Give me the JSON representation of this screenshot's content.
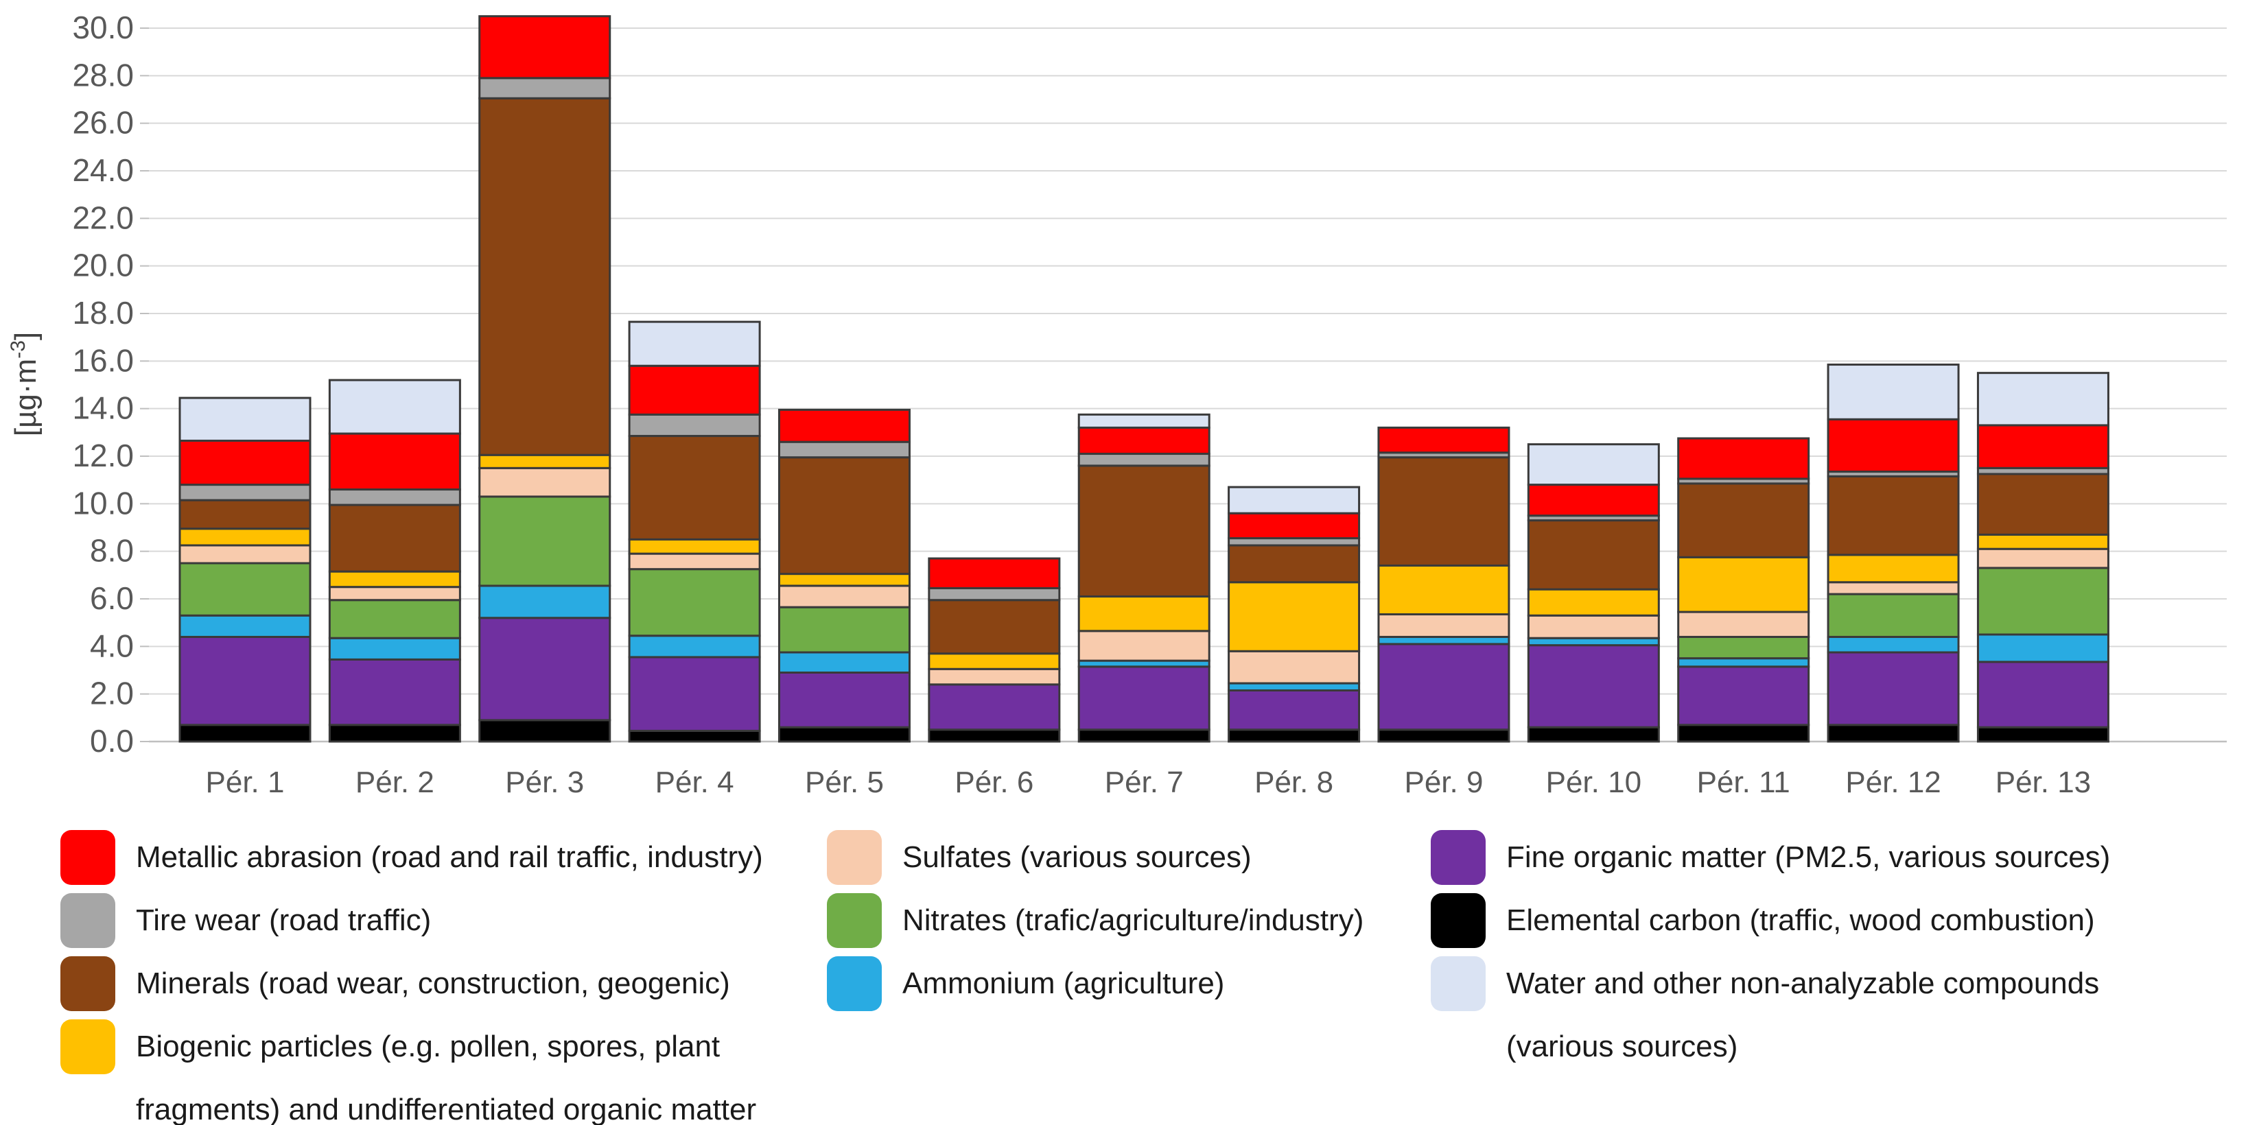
{
  "chart_data": {
    "type": "bar",
    "stacked": true,
    "title": "",
    "ylabel": "[µg·m⁻³]",
    "ylabel_parts": {
      "pre": "[µg·m",
      "sup": "-3",
      "post": "]"
    },
    "ylim": [
      0,
      30.6
    ],
    "y_tick_step": 2,
    "grid": true,
    "y_ticks": [
      "0.0",
      "2.0",
      "4.0",
      "6.0",
      "8.0",
      "10.0",
      "12.0",
      "14.0",
      "16.0",
      "18.0",
      "20.0",
      "22.0",
      "24.0",
      "26.0",
      "28.0",
      "30.0"
    ],
    "categories": [
      "Pér. 1",
      "Pér. 2",
      "Pér. 3",
      "Pér. 4",
      "Pér. 5",
      "Pér. 6",
      "Pér. 7",
      "Pér. 8",
      "Pér. 9",
      "Pér. 10",
      "Pér. 11",
      "Pér. 12",
      "Pér. 13"
    ],
    "legend_position": "bottom",
    "series": [
      {
        "key": "elemental-carbon",
        "name": "Elemental carbon (traffic, wood combustion)",
        "color": "#000000",
        "values": [
          0.7,
          0.7,
          0.9,
          0.45,
          0.6,
          0.5,
          0.5,
          0.5,
          0.5,
          0.6,
          0.7,
          0.7,
          0.6
        ]
      },
      {
        "key": "fine-organic-matter",
        "name": "Fine organic matter (PM2.5, various sources)",
        "color": "#7030A0",
        "values": [
          3.7,
          2.75,
          4.3,
          3.1,
          2.3,
          1.9,
          2.65,
          1.65,
          3.6,
          3.45,
          2.45,
          3.05,
          2.75
        ]
      },
      {
        "key": "ammonium",
        "name": "Ammonium (agriculture)",
        "color": "#29ABE2",
        "values": [
          0.9,
          0.9,
          1.35,
          0.9,
          0.85,
          0,
          0.25,
          0.3,
          0.3,
          0.3,
          0.35,
          0.65,
          1.15
        ]
      },
      {
        "key": "nitrates",
        "name": "Nitrates (trafic/agriculture/industry)",
        "color": "#70AD47",
        "values": [
          2.2,
          1.6,
          3.75,
          2.8,
          1.9,
          0,
          0,
          0,
          0,
          0,
          0.9,
          1.8,
          2.8
        ]
      },
      {
        "key": "sulfates",
        "name": "Sulfates (various sources)",
        "color": "#F8CBAD",
        "values": [
          0.75,
          0.55,
          1.2,
          0.65,
          0.9,
          0.65,
          1.25,
          1.35,
          0.95,
          0.95,
          1.05,
          0.5,
          0.8
        ]
      },
      {
        "key": "biogenic-particles",
        "name": "Biogenic particles (e.g. pollen, spores, plant fragments) and undifferentiated organic matter",
        "color": "#FFC000",
        "values": [
          0.7,
          0.65,
          0.55,
          0.6,
          0.5,
          0.65,
          1.45,
          2.9,
          2.05,
          1.1,
          2.3,
          1.15,
          0.6
        ]
      },
      {
        "key": "minerals",
        "name": "Minerals (road wear, construction, geogenic)",
        "color": "#8A4413",
        "values": [
          1.2,
          2.8,
          15.0,
          4.35,
          4.9,
          2.25,
          5.5,
          1.55,
          4.55,
          2.9,
          3.1,
          3.3,
          2.55
        ]
      },
      {
        "key": "tire-wear",
        "name": "Tire wear (road traffic)",
        "color": "#A6A6A6",
        "values": [
          0.65,
          0.65,
          0.85,
          0.9,
          0.65,
          0.5,
          0.5,
          0.3,
          0.2,
          0.2,
          0.2,
          0.2,
          0.25
        ]
      },
      {
        "key": "metallic-abrasion",
        "name": "Metallic abrasion (road and rail traffic, industry)",
        "color": "#FF0000",
        "values": [
          1.85,
          2.35,
          2.6,
          2.05,
          1.35,
          1.25,
          1.1,
          1.05,
          1.05,
          1.3,
          1.7,
          2.2,
          1.8
        ]
      },
      {
        "key": "water-other",
        "name": "Water and other non-analyzable compounds (various sources)",
        "color": "#DAE3F3",
        "values": [
          1.8,
          2.25,
          0,
          1.85,
          0,
          0,
          0.55,
          1.1,
          0,
          1.7,
          0,
          2.3,
          2.2
        ]
      }
    ],
    "totals": [
      14.45,
      15.2,
      30.5,
      17.65,
      13.95,
      7.7,
      13.75,
      10.7,
      13.2,
      12.5,
      12.75,
      15.85,
      15.5
    ]
  },
  "legend": {
    "columns": [
      {
        "items": [
          {
            "key": "metallic-abrasion",
            "color": "#FF0000",
            "label_lines": [
              "Metallic abrasion (road and rail traffic, industry)"
            ]
          },
          {
            "key": "tire-wear",
            "color": "#A6A6A6",
            "label_lines": [
              "Tire wear (road traffic)"
            ]
          },
          {
            "key": "minerals",
            "color": "#8A4413",
            "label_lines": [
              "Minerals (road wear, construction, geogenic)"
            ]
          },
          {
            "key": "biogenic-particles",
            "color": "#FFC000",
            "label_lines": [
              "Biogenic particles (e.g. pollen, spores, plant",
              "fragments) and undifferentiated organic matter"
            ]
          }
        ]
      },
      {
        "items": [
          {
            "key": "sulfates",
            "color": "#F8CBAD",
            "label_lines": [
              "Sulfates (various sources)"
            ]
          },
          {
            "key": "nitrates",
            "color": "#70AD47",
            "label_lines": [
              "Nitrates (trafic/agriculture/industry)"
            ]
          },
          {
            "key": "ammonium",
            "color": "#29ABE2",
            "label_lines": [
              "Ammonium (agriculture)"
            ]
          }
        ]
      },
      {
        "items": [
          {
            "key": "fine-organic-matter",
            "color": "#7030A0",
            "label_lines": [
              "Fine organic matter (PM2.5, various sources)"
            ]
          },
          {
            "key": "elemental-carbon",
            "color": "#000000",
            "label_lines": [
              "Elemental carbon (traffic, wood combustion)"
            ]
          },
          {
            "key": "water-other",
            "color": "#DAE3F3",
            "label_lines": [
              "Water and other non-analyzable compounds",
              "(various sources)"
            ]
          }
        ]
      }
    ]
  },
  "style": {
    "gridline_color": "#D9D9D9",
    "axis_line_color": "#BFBFBF",
    "tick_label_color": "#595959",
    "segment_outline_color": "#3A3A3A",
    "background": "#FFFFFF"
  }
}
